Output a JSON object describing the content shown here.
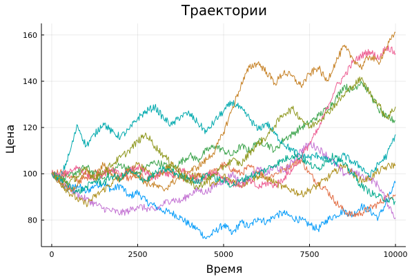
{
  "chart_data": {
    "type": "line",
    "title": "Траектории",
    "xlabel": "Время",
    "ylabel": "Цена",
    "xlim": [
      -300,
      10300
    ],
    "ylim": [
      68.5,
      165
    ],
    "xticks": [
      0,
      2500,
      5000,
      7500,
      10000
    ],
    "xtick_labels": [
      "0",
      "2500",
      "5000",
      "7500",
      "10000"
    ],
    "yticks": [
      80,
      100,
      120,
      140,
      160
    ],
    "ytick_labels": [
      "80",
      "100",
      "120",
      "140",
      "160"
    ],
    "grid": true,
    "legend": "none",
    "series": [
      {
        "color": "#009af9",
        "x": [
          0,
          250,
          500,
          750,
          1000,
          1250,
          1500,
          1750,
          2000,
          2250,
          2500,
          2750,
          3000,
          3250,
          3500,
          3750,
          4000,
          4250,
          4500,
          4750,
          5000,
          5250,
          5500,
          5750,
          6000,
          6250,
          6500,
          6750,
          7000,
          7250,
          7500,
          7750,
          8000,
          8250,
          8500,
          8750,
          9000,
          9250,
          9500,
          9750,
          10000
        ],
        "y": [
          100,
          96,
          93,
          95,
          92,
          95,
          96,
          93,
          95,
          90,
          92,
          88,
          86,
          84,
          83,
          81,
          78,
          76,
          72,
          75,
          78,
          74,
          79,
          77,
          81,
          79,
          82,
          83,
          81,
          80,
          78,
          76,
          80,
          82,
          84,
          82,
          86,
          84,
          81,
          88,
          96
        ]
      },
      {
        "color": "#e26f46",
        "x": [
          0,
          250,
          500,
          750,
          1000,
          1250,
          1500,
          1750,
          2000,
          2250,
          2500,
          2750,
          3000,
          3250,
          3500,
          3750,
          4000,
          4250,
          4500,
          4750,
          5000,
          5250,
          5500,
          5750,
          6000,
          6250,
          6500,
          6750,
          7000,
          7250,
          7500,
          7750,
          8000,
          8250,
          8500,
          8750,
          9000,
          9250,
          9500,
          9750,
          10000
        ],
        "y": [
          100,
          101,
          99,
          97,
          98,
          101,
          100,
          102,
          99,
          98,
          100,
          97,
          99,
          101,
          100,
          98,
          97,
          99,
          100,
          101,
          104,
          102,
          100,
          103,
          101,
          98,
          100,
          102,
          104,
          106,
          100,
          96,
          93,
          88,
          84,
          82,
          83,
          85,
          87,
          90,
          91
        ]
      },
      {
        "color": "#3da44d",
        "x": [
          0,
          250,
          500,
          750,
          1000,
          1250,
          1500,
          1750,
          2000,
          2250,
          2500,
          2750,
          3000,
          3250,
          3500,
          3750,
          4000,
          4250,
          4500,
          4750,
          5000,
          5250,
          5500,
          5750,
          6000,
          6250,
          6500,
          6750,
          7000,
          7250,
          7500,
          7750,
          8000,
          8250,
          8500,
          8750,
          9000,
          9250,
          9500,
          9750,
          10000
        ],
        "y": [
          100,
          97,
          99,
          101,
          103,
          100,
          98,
          101,
          104,
          102,
          100,
          103,
          105,
          104,
          102,
          105,
          108,
          106,
          110,
          112,
          110,
          108,
          112,
          110,
          114,
          113,
          110,
          115,
          117,
          120,
          122,
          125,
          128,
          132,
          138,
          136,
          140,
          135,
          128,
          124,
          123
        ]
      },
      {
        "color": "#c271d2",
        "x": [
          0,
          250,
          500,
          750,
          1000,
          1250,
          1500,
          1750,
          2000,
          2250,
          2500,
          2750,
          3000,
          3250,
          3500,
          3750,
          4000,
          4250,
          4500,
          4750,
          5000,
          5250,
          5500,
          5750,
          6000,
          6250,
          6500,
          6750,
          7000,
          7250,
          7500,
          7750,
          8000,
          8250,
          8500,
          8750,
          9000,
          9250,
          9500,
          9750,
          10000
        ],
        "y": [
          100,
          97,
          94,
          91,
          89,
          87,
          85,
          84,
          83,
          84,
          86,
          85,
          84,
          87,
          89,
          88,
          91,
          93,
          92,
          95,
          97,
          100,
          96,
          98,
          102,
          100,
          103,
          101,
          105,
          110,
          113,
          111,
          108,
          104,
          100,
          101,
          99,
          98,
          95,
          88,
          81
        ]
      },
      {
        "color": "#ac8d18",
        "x": [
          0,
          250,
          500,
          750,
          1000,
          1250,
          1500,
          1750,
          2000,
          2250,
          2500,
          2750,
          3000,
          3250,
          3500,
          3750,
          4000,
          4250,
          4500,
          4750,
          5000,
          5250,
          5500,
          5750,
          6000,
          6250,
          6500,
          6750,
          7000,
          7250,
          7500,
          7750,
          8000,
          8250,
          8500,
          8750,
          9000,
          9250,
          9500,
          9750,
          10000
        ],
        "y": [
          100,
          96,
          92,
          89,
          87,
          90,
          93,
          96,
          99,
          101,
          104,
          102,
          99,
          101,
          104,
          101,
          98,
          100,
          97,
          95,
          99,
          97,
          95,
          97,
          99,
          98,
          96,
          94,
          93,
          91,
          93,
          95,
          98,
          101,
          104,
          100,
          97,
          98,
          101,
          103,
          104
        ]
      },
      {
        "color": "#00a9ad",
        "x": [
          0,
          250,
          500,
          750,
          1000,
          1250,
          1500,
          1750,
          2000,
          2250,
          2500,
          2750,
          3000,
          3250,
          3500,
          3750,
          4000,
          4250,
          4500,
          4750,
          5000,
          5250,
          5500,
          5750,
          6000,
          6250,
          6500,
          6750,
          7000,
          7250,
          7500,
          7750,
          8000,
          8250,
          8500,
          8750,
          9000,
          9250,
          9500,
          9750,
          10000
        ],
        "y": [
          100,
          98,
          108,
          121,
          112,
          117,
          122,
          118,
          116,
          119,
          124,
          127,
          129,
          124,
          121,
          125,
          126,
          122,
          118,
          123,
          127,
          131,
          128,
          124,
          119,
          122,
          117,
          113,
          110,
          108,
          107,
          108,
          106,
          104,
          108,
          105,
          103,
          99,
          104,
          108,
          117
        ]
      },
      {
        "color": "#ed5d92",
        "x": [
          0,
          250,
          500,
          750,
          1000,
          1250,
          1500,
          1750,
          2000,
          2250,
          2500,
          2750,
          3000,
          3250,
          3500,
          3750,
          4000,
          4250,
          4500,
          4750,
          5000,
          5250,
          5500,
          5750,
          6000,
          6250,
          6500,
          6750,
          7000,
          7250,
          7500,
          7750,
          8000,
          8250,
          8500,
          8750,
          9000,
          9250,
          9500,
          9750,
          10000
        ],
        "y": [
          100,
          99,
          101,
          103,
          100,
          98,
          100,
          102,
          99,
          101,
          103,
          100,
          98,
          101,
          99,
          102,
          100,
          97,
          99,
          101,
          98,
          96,
          95,
          97,
          94,
          96,
          95,
          98,
          102,
          107,
          113,
          119,
          128,
          137,
          142,
          148,
          151,
          153,
          150,
          155,
          152
        ]
      },
      {
        "color": "#c68125",
        "x": [
          0,
          250,
          500,
          750,
          1000,
          1250,
          1500,
          1750,
          2000,
          2250,
          2500,
          2750,
          3000,
          3250,
          3500,
          3750,
          4000,
          4250,
          4500,
          4750,
          5000,
          5250,
          5500,
          5750,
          6000,
          6250,
          6500,
          6750,
          7000,
          7250,
          7500,
          7750,
          8000,
          8250,
          8500,
          8750,
          9000,
          9250,
          9500,
          9750,
          10000
        ],
        "y": [
          100,
          96,
          93,
          95,
          101,
          98,
          104,
          100,
          97,
          102,
          99,
          96,
          95,
          93,
          96,
          99,
          101,
          103,
          106,
          110,
          118,
          128,
          138,
          146,
          148,
          144,
          139,
          144,
          142,
          138,
          143,
          146,
          140,
          148,
          155,
          150,
          146,
          151,
          148,
          155,
          161
        ]
      },
      {
        "color": "#00a98d",
        "x": [
          0,
          250,
          500,
          750,
          1000,
          1250,
          1500,
          1750,
          2000,
          2250,
          2500,
          2750,
          3000,
          3250,
          3500,
          3750,
          4000,
          4250,
          4500,
          4750,
          5000,
          5250,
          5500,
          5750,
          6000,
          6250,
          6500,
          6750,
          7000,
          7250,
          7500,
          7750,
          8000,
          8250,
          8500,
          8750,
          9000,
          9250,
          9500,
          9750,
          10000
        ],
        "y": [
          100,
          98,
          95,
          92,
          94,
          97,
          96,
          99,
          98,
          101,
          99,
          97,
          100,
          102,
          101,
          99,
          98,
          96,
          100,
          98,
          97,
          95,
          97,
          99,
          100,
          102,
          104,
          106,
          108,
          107,
          104,
          102,
          106,
          108,
          104,
          100,
          95,
          92,
          90,
          89,
          88
        ]
      },
      {
        "color": "#8e971d",
        "x": [
          0,
          250,
          500,
          750,
          1000,
          1250,
          1500,
          1750,
          2000,
          2250,
          2500,
          2750,
          3000,
          3250,
          3500,
          3750,
          4000,
          4250,
          4500,
          4750,
          5000,
          5250,
          5500,
          5750,
          6000,
          6250,
          6500,
          6750,
          7000,
          7250,
          7500,
          7750,
          8000,
          8250,
          8500,
          8750,
          9000,
          9250,
          9500,
          9750,
          10000
        ],
        "y": [
          100,
          98,
          96,
          99,
          102,
          98,
          101,
          104,
          107,
          110,
          114,
          117,
          112,
          108,
          104,
          100,
          96,
          94,
          97,
          100,
          103,
          106,
          104,
          109,
          113,
          116,
          121,
          126,
          128,
          124,
          120,
          123,
          126,
          130,
          134,
          138,
          141,
          135,
          130,
          124,
          129
        ]
      }
    ]
  }
}
